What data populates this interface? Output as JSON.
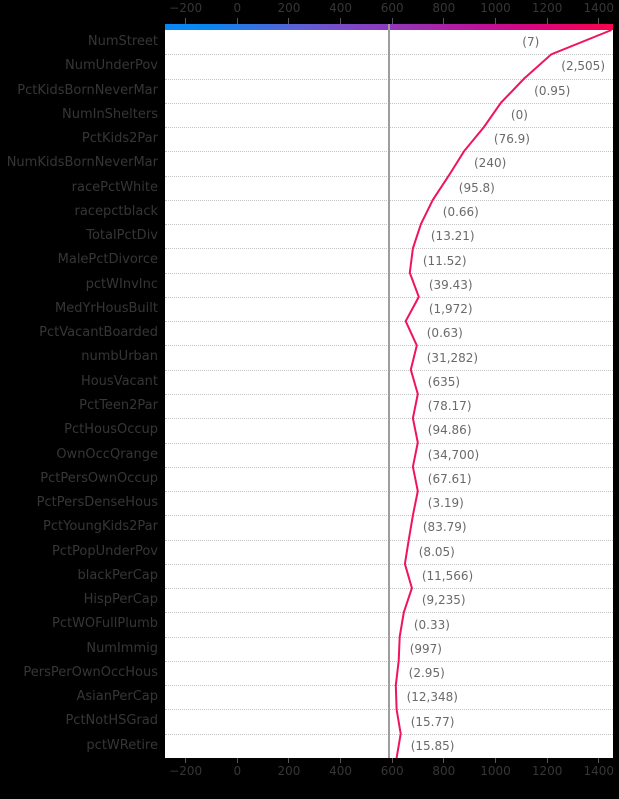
{
  "chart_data": {
    "type": "line",
    "subtype": "shap-decision-plot",
    "title": "",
    "xlabel": "",
    "ylabel": "",
    "legend": "none",
    "grid": "dotted-horizontal-row-separators",
    "xlim": [
      -280,
      1455
    ],
    "x_ticks": [
      {
        "value": -200,
        "label": "−200"
      },
      {
        "value": 0,
        "label": "0"
      },
      {
        "value": 200,
        "label": "200"
      },
      {
        "value": 400,
        "label": "400"
      },
      {
        "value": 600,
        "label": "600"
      },
      {
        "value": 800,
        "label": "800"
      },
      {
        "value": 1000,
        "label": "1000"
      },
      {
        "value": 1200,
        "label": "1200"
      },
      {
        "value": 1400,
        "label": "1400"
      }
    ],
    "base_value": 588,
    "final_value": 1449,
    "features": [
      {
        "name": "NumStreet",
        "value_label": "(7)"
      },
      {
        "name": "NumUnderPov",
        "value_label": "(2,505)"
      },
      {
        "name": "PctKidsBornNeverMar",
        "value_label": "(0.95)"
      },
      {
        "name": "NumInShelters",
        "value_label": "(0)"
      },
      {
        "name": "PctKids2Par",
        "value_label": "(76.9)"
      },
      {
        "name": "NumKidsBornNeverMar",
        "value_label": "(240)"
      },
      {
        "name": "racePctWhite",
        "value_label": "(95.8)"
      },
      {
        "name": "racepctblack",
        "value_label": "(0.66)"
      },
      {
        "name": "TotalPctDiv",
        "value_label": "(13.21)"
      },
      {
        "name": "MalePctDivorce",
        "value_label": "(11.52)"
      },
      {
        "name": "pctWInvInc",
        "value_label": "(39.43)"
      },
      {
        "name": "MedYrHousBuilt",
        "value_label": "(1,972)"
      },
      {
        "name": "PctVacantBoarded",
        "value_label": "(0.63)"
      },
      {
        "name": "numbUrban",
        "value_label": "(31,282)"
      },
      {
        "name": "HousVacant",
        "value_label": "(635)"
      },
      {
        "name": "PctTeen2Par",
        "value_label": "(78.17)"
      },
      {
        "name": "PctHousOccup",
        "value_label": "(94.86)"
      },
      {
        "name": "OwnOccQrange",
        "value_label": "(34,700)"
      },
      {
        "name": "PctPersOwnOccup",
        "value_label": "(67.61)"
      },
      {
        "name": "PctPersDenseHous",
        "value_label": "(3.19)"
      },
      {
        "name": "PctYoungKids2Par",
        "value_label": "(83.79)"
      },
      {
        "name": "PctPopUnderPov",
        "value_label": "(8.05)"
      },
      {
        "name": "blackPerCap",
        "value_label": "(11,566)"
      },
      {
        "name": "HispPerCap",
        "value_label": "(9,235)"
      },
      {
        "name": "PctWOFullPlumb",
        "value_label": "(0.33)"
      },
      {
        "name": "NumImmig",
        "value_label": "(997)"
      },
      {
        "name": "PersPerOwnOccHous",
        "value_label": "(2.95)"
      },
      {
        "name": "AsianPerCap",
        "value_label": "(12,348)"
      },
      {
        "name": "PctNotHSGrad",
        "value_label": "(15.77)"
      },
      {
        "name": "pctWRetire",
        "value_label": "(15.85)"
      }
    ],
    "cumulative_line_x": [
      1449,
      1216,
      1111,
      1021,
      955,
      878,
      819,
      757,
      711,
      680,
      668,
      703,
      652,
      695,
      672,
      699,
      680,
      699,
      680,
      699,
      680,
      664,
      649,
      676,
      645,
      629,
      625,
      614,
      617,
      633,
      617
    ],
    "colors": {
      "background": "#000000",
      "plot_background": "#ffffff",
      "axis_text": "#363636",
      "annotation_text": "#6a6a6a",
      "gridline": "#c4c4c4",
      "base_line": "#9e9e9e",
      "line": "#f0135f",
      "colorbar_gradient": [
        "#0688f8",
        "#0b86ef",
        "#3572e2",
        "#5b60d6",
        "#7b4ac8",
        "#9038bd",
        "#a526ab",
        "#bc129b",
        "#d20784",
        "#e90368",
        "#fb034e"
      ]
    }
  }
}
